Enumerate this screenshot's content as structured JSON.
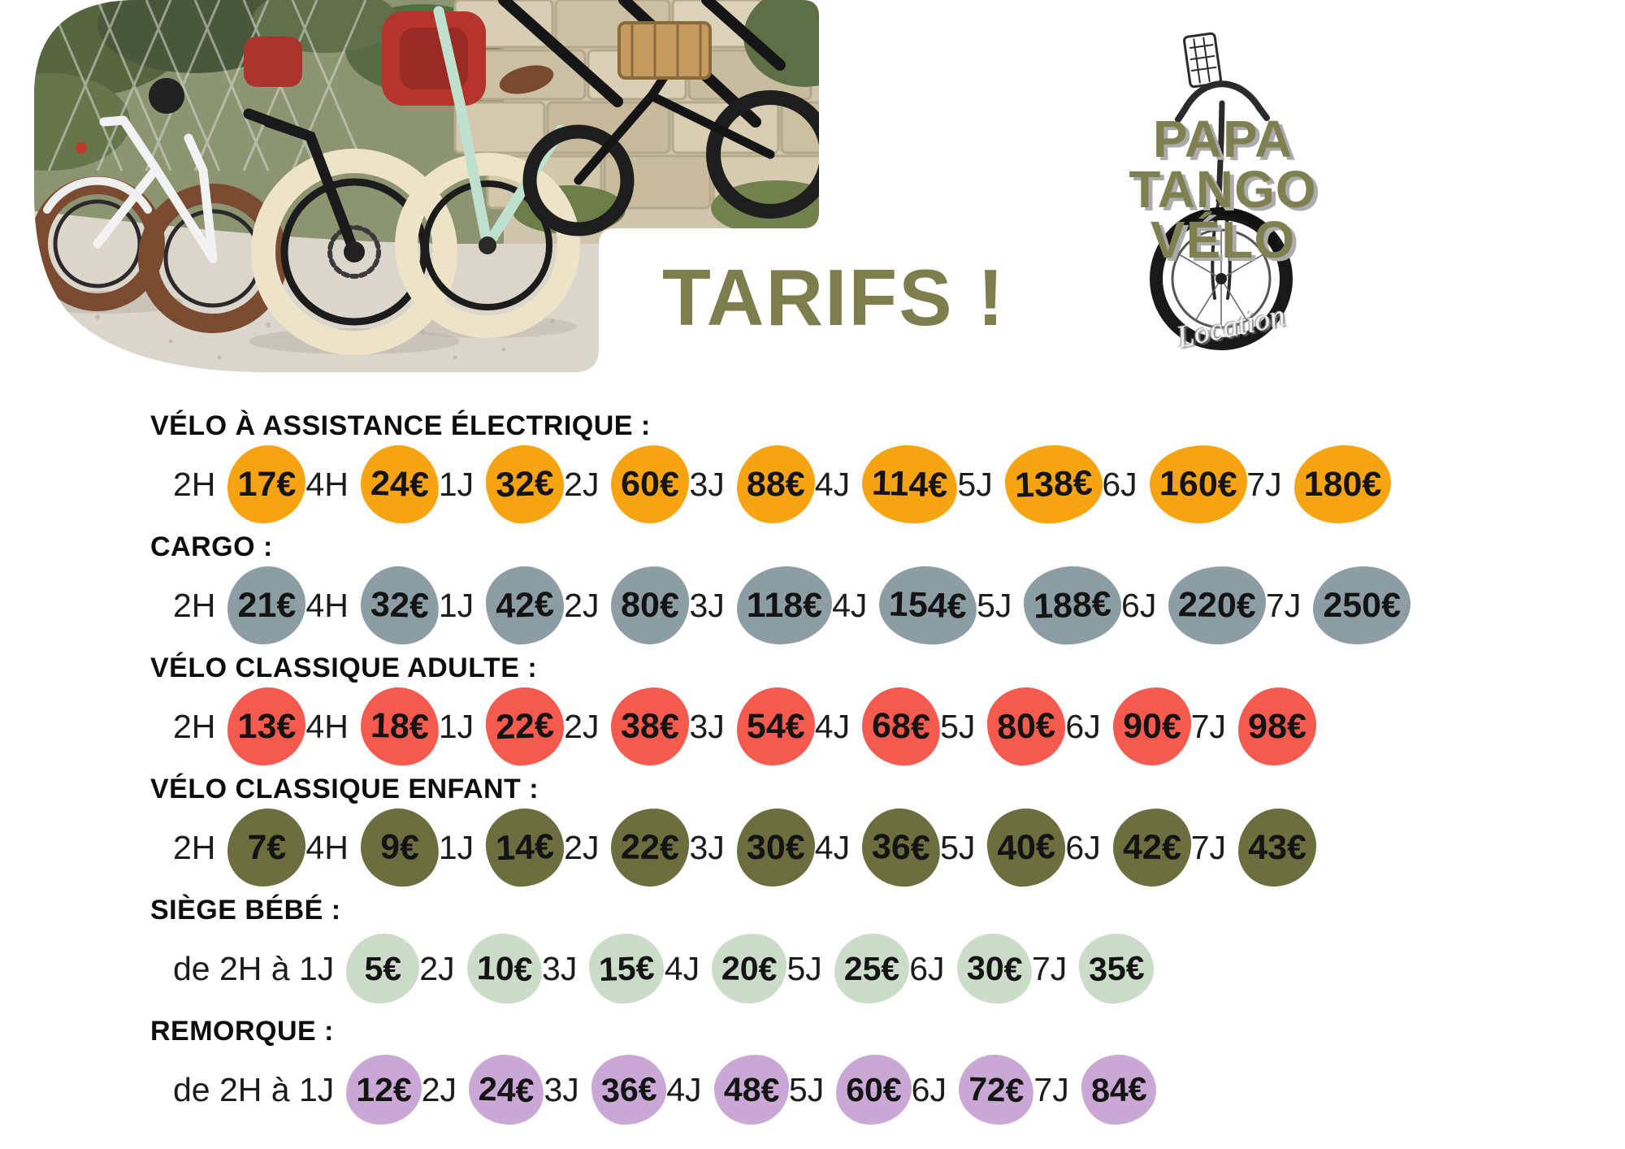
{
  "title": "TARIFS !",
  "logo": {
    "line1": "PAPA",
    "line2": "TANGO",
    "line3": "VÉLO",
    "script": "Location"
  },
  "colors": {
    "title_olive": "#7c7e4d",
    "logo_olive": "#7d8050",
    "heading_black": "#0d0d0d",
    "electric_orange": "#f7a412",
    "cargo_slate": "#8c9ea4",
    "adult_red": "#f45b4e",
    "child_olive": "#6b6e3f",
    "seat_sage": "#cbdcc8",
    "trailer_purple": "#c9a8d5"
  },
  "sections": [
    {
      "heading": "VÉLO À ASSISTANCE ÉLECTRIQUE :",
      "blob_color": "#f7a412",
      "items": [
        {
          "duration": "2H",
          "price": "17€"
        },
        {
          "duration": "4H",
          "price": "24€"
        },
        {
          "duration": "1J",
          "price": "32€"
        },
        {
          "duration": "2J",
          "price": "60€"
        },
        {
          "duration": "3J",
          "price": "88€"
        },
        {
          "duration": "4J",
          "price": "114€"
        },
        {
          "duration": "5J",
          "price": "138€"
        },
        {
          "duration": "6J",
          "price": "160€"
        },
        {
          "duration": "7J",
          "price": "180€"
        }
      ]
    },
    {
      "heading": "CARGO :",
      "blob_color": "#8c9ea4",
      "items": [
        {
          "duration": "2H",
          "price": "21€"
        },
        {
          "duration": "4H",
          "price": "32€"
        },
        {
          "duration": "1J",
          "price": "42€"
        },
        {
          "duration": "2J",
          "price": "80€"
        },
        {
          "duration": "3J",
          "price": "118€"
        },
        {
          "duration": "4J",
          "price": "154€"
        },
        {
          "duration": "5J",
          "price": "188€"
        },
        {
          "duration": "6J",
          "price": "220€"
        },
        {
          "duration": "7J",
          "price": "250€"
        }
      ]
    },
    {
      "heading": "VÉLO CLASSIQUE ADULTE :",
      "blob_color": "#f45b4e",
      "items": [
        {
          "duration": "2H",
          "price": "13€"
        },
        {
          "duration": "4H",
          "price": "18€"
        },
        {
          "duration": "1J",
          "price": "22€"
        },
        {
          "duration": "2J",
          "price": "38€"
        },
        {
          "duration": "3J",
          "price": "54€"
        },
        {
          "duration": "4J",
          "price": "68€"
        },
        {
          "duration": "5J",
          "price": "80€"
        },
        {
          "duration": "6J",
          "price": "90€"
        },
        {
          "duration": "7J",
          "price": "98€"
        }
      ]
    },
    {
      "heading": "VÉLO CLASSIQUE ENFANT :",
      "blob_color": "#6b6e3f",
      "items": [
        {
          "duration": "2H",
          "price": "7€"
        },
        {
          "duration": "4H",
          "price": "9€"
        },
        {
          "duration": "1J",
          "price": "14€"
        },
        {
          "duration": "2J",
          "price": "22€"
        },
        {
          "duration": "3J",
          "price": "30€"
        },
        {
          "duration": "4J",
          "price": "36€"
        },
        {
          "duration": "5J",
          "price": "40€"
        },
        {
          "duration": "6J",
          "price": "42€"
        },
        {
          "duration": "7J",
          "price": "43€"
        }
      ]
    },
    {
      "heading": "SIÈGE BÉBÉ :",
      "blob_color": "#cbdcc8",
      "small": true,
      "items": [
        {
          "duration": "de 2H à 1J",
          "price": "5€"
        },
        {
          "duration": "2J",
          "price": "10€"
        },
        {
          "duration": "3J",
          "price": "15€"
        },
        {
          "duration": "4J",
          "price": "20€"
        },
        {
          "duration": "5J",
          "price": "25€"
        },
        {
          "duration": "6J",
          "price": "30€"
        },
        {
          "duration": "7J",
          "price": "35€"
        }
      ]
    },
    {
      "heading": "REMORQUE :",
      "blob_color": "#c9a8d5",
      "small": true,
      "items": [
        {
          "duration": "de 2H à 1J",
          "price": "12€"
        },
        {
          "duration": "2J",
          "price": "24€"
        },
        {
          "duration": "3J",
          "price": "36€"
        },
        {
          "duration": "4J",
          "price": "48€"
        },
        {
          "duration": "5J",
          "price": "60€"
        },
        {
          "duration": "6J",
          "price": "72€"
        },
        {
          "duration": "7J",
          "price": "84€"
        }
      ]
    }
  ]
}
